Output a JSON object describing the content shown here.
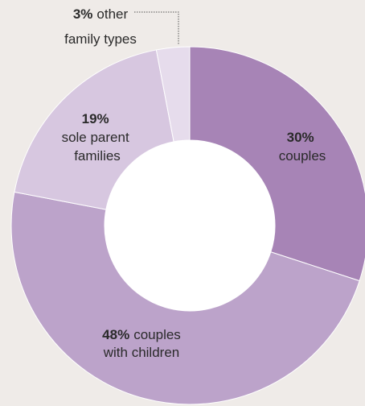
{
  "chart_data": {
    "type": "pie",
    "style": "donut",
    "slices": [
      {
        "percent_label": "30%",
        "label_lines": [
          "couples"
        ],
        "value": 30,
        "color": "#a784b6"
      },
      {
        "percent_label": "48%",
        "label_lines": [
          "couples",
          "with children"
        ],
        "value": 48,
        "color": "#bca3ca"
      },
      {
        "percent_label": "19%",
        "label_lines": [
          "sole parent",
          "families"
        ],
        "value": 19,
        "color": "#d7c7e0"
      },
      {
        "percent_label": "3%",
        "label_lines": [
          "other",
          "family types"
        ],
        "value": 3,
        "color": "#e6dcec"
      }
    ]
  },
  "colors": {
    "background": "#efebe8",
    "text": "#2a2a2a",
    "leader_line": "#555555"
  }
}
